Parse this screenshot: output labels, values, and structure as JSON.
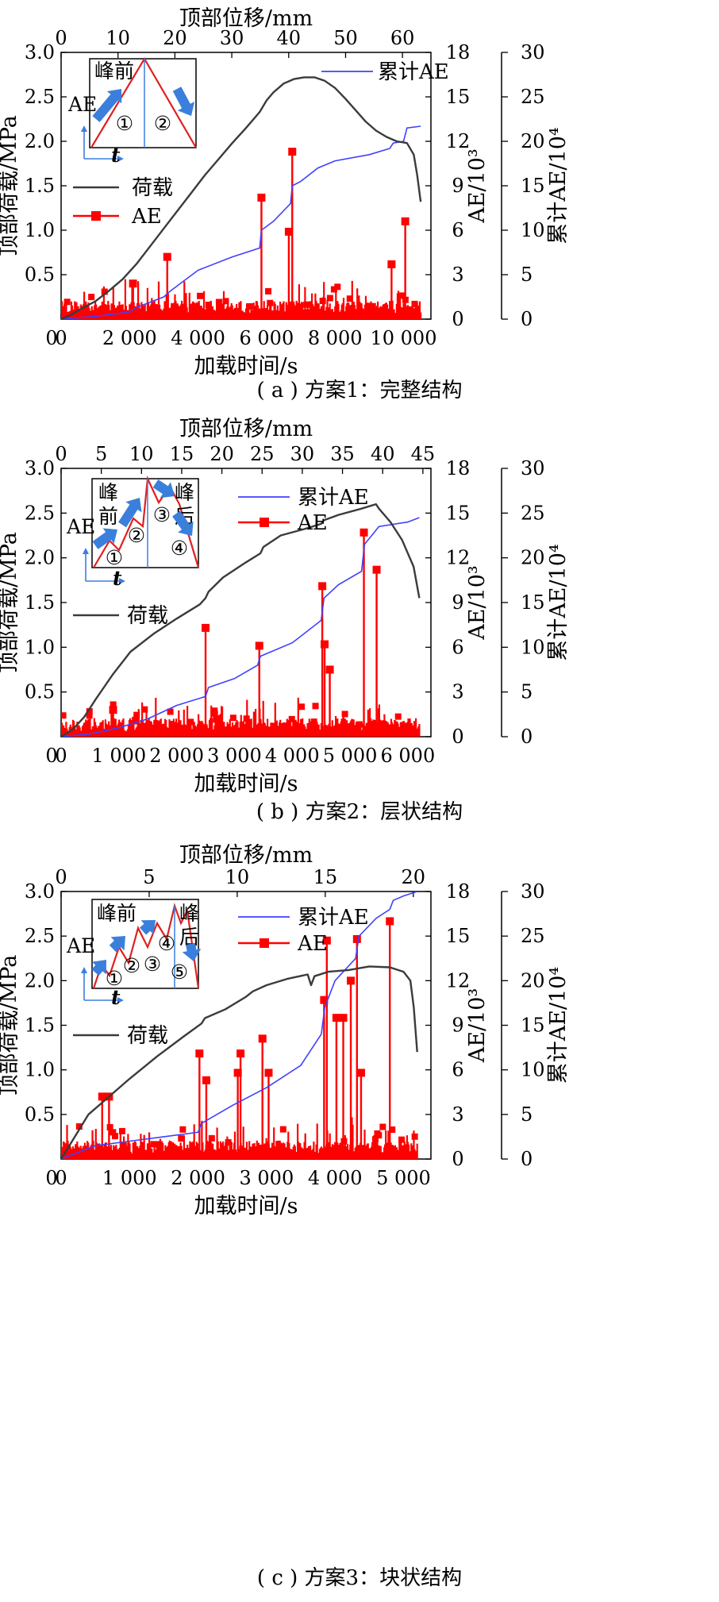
{
  "figure": {
    "charts": [
      {
        "caption": "( a ) 方案1：完整结构",
        "top_axis_title": "顶部位移/mm",
        "x_axis_title": "加载时间/s",
        "y_left_title": "顶部荷载/MPa",
        "y_right1_title": "AE/10³",
        "y_right2_title": "累计AE/10⁴",
        "legend": {
          "load": "荷载",
          "ae": "AE",
          "cum": "累计AE"
        },
        "inset": {
          "ylabel": "AE",
          "xlabel": "t",
          "stage_text": [
            "峰前"
          ],
          "stages": [
            "①",
            "②"
          ]
        }
      },
      {
        "caption": "( b ) 方案2：层状结构",
        "top_axis_title": "顶部位移/mm",
        "x_axis_title": "加载时间/s",
        "y_left_title": "顶部荷载/MPa",
        "y_right1_title": "AE/10³",
        "y_right2_title": "累计AE/10⁴",
        "legend": {
          "load": "荷载",
          "ae": "AE",
          "cum": "累计AE"
        },
        "inset": {
          "ylabel": "AE",
          "xlabel": "t",
          "stage_text": [
            "峰",
            "前",
            "峰",
            "后"
          ],
          "stages": [
            "①",
            "②",
            "③",
            "④"
          ]
        }
      },
      {
        "caption": "( c ) 方案3：块状结构",
        "top_axis_title": "顶部位移/mm",
        "x_axis_title": "加载时间/s",
        "y_left_title": "顶部荷载/MPa",
        "y_right1_title": "AE/10³",
        "y_right2_title": "累计AE/10⁴",
        "legend": {
          "load": "荷载",
          "ae": "AE",
          "cum": "累计AE"
        },
        "inset": {
          "ylabel": "AE",
          "xlabel": "t",
          "stage_text": [
            "峰前",
            "峰",
            "后"
          ],
          "stages": [
            "①",
            "②",
            "③",
            "④",
            "⑤"
          ]
        }
      }
    ]
  },
  "chart_data": [
    {
      "type": "line",
      "x_axis": {
        "range": [
          0,
          10800
        ],
        "ticks": [
          0,
          2000,
          4000,
          6000,
          8000,
          10000
        ],
        "tick_labels": [
          "0",
          "2 000",
          "4 000",
          "6 000",
          "8 000",
          "10 000"
        ]
      },
      "top_axis": {
        "range": [
          0,
          65
        ],
        "ticks": [
          0,
          10,
          20,
          30,
          40,
          50,
          60
        ],
        "tick_labels": [
          "0",
          "10",
          "20",
          "30",
          "40",
          "50",
          "60"
        ]
      },
      "y_left": {
        "range": [
          0,
          3.0
        ],
        "ticks": [
          0.5,
          1.0,
          1.5,
          2.0,
          2.5,
          3.0
        ],
        "tick_labels": [
          "0.5",
          "1.0",
          "1.5",
          "2.0",
          "2.5",
          "3.0"
        ]
      },
      "y_right1": {
        "range": [
          0,
          18
        ],
        "ticks": [
          0,
          3,
          6,
          9,
          12,
          15,
          18
        ],
        "tick_labels": [
          "0",
          "3",
          "6",
          "9",
          "12",
          "15",
          "18"
        ]
      },
      "y_right2": {
        "range": [
          0,
          30
        ],
        "ticks": [
          0,
          5,
          10,
          15,
          20,
          25,
          30
        ],
        "tick_labels": [
          "0",
          "5",
          "10",
          "15",
          "20",
          "25",
          "30"
        ]
      },
      "series": [
        {
          "name": "荷载",
          "axis": "left",
          "color": "#3b3b3b",
          "x": [
            0,
            300,
            600,
            1000,
            1400,
            1800,
            2200,
            2600,
            3000,
            3400,
            3800,
            4200,
            4600,
            5000,
            5400,
            5800,
            6000,
            6200,
            6500,
            6800,
            7100,
            7400,
            7700,
            8000,
            8300,
            8600,
            8900,
            9200,
            9500,
            9800,
            10100,
            10300,
            10400,
            10500
          ],
          "y": [
            0.0,
            0.05,
            0.12,
            0.2,
            0.32,
            0.45,
            0.62,
            0.82,
            1.02,
            1.22,
            1.42,
            1.62,
            1.8,
            1.98,
            2.15,
            2.33,
            2.46,
            2.55,
            2.65,
            2.7,
            2.72,
            2.72,
            2.68,
            2.6,
            2.48,
            2.35,
            2.22,
            2.12,
            2.05,
            2.0,
            1.98,
            1.85,
            1.62,
            1.32
          ]
        },
        {
          "name": "累计AE",
          "axis": "right2",
          "color": "#4040ff",
          "x": [
            0,
            1000,
            2000,
            2200,
            3000,
            3200,
            4000,
            5000,
            5800,
            5850,
            6200,
            6700,
            6750,
            7000,
            7500,
            8000,
            9000,
            9600,
            9700,
            10000,
            10100,
            10500
          ],
          "y": [
            0,
            0.3,
            0.8,
            1.3,
            2.5,
            3.2,
            5.5,
            7.0,
            8.0,
            10.0,
            11.0,
            13.0,
            15.0,
            15.5,
            17.0,
            17.8,
            18.5,
            19.2,
            19.8,
            20.0,
            21.5,
            21.7
          ]
        },
        {
          "name": "AE",
          "axis": "right1",
          "color": "#ff0000",
          "peaks_x": [
            2100,
            3100,
            5850,
            6650,
            6750,
            9650,
            10050
          ],
          "peaks_y": [
            2.4,
            4.2,
            8.2,
            5.9,
            11.3,
            3.7,
            6.6
          ]
        }
      ]
    },
    {
      "type": "line",
      "x_axis": {
        "range": [
          0,
          6400
        ],
        "ticks": [
          0,
          1000,
          2000,
          3000,
          4000,
          5000,
          6000
        ],
        "tick_labels": [
          "0",
          "1 000",
          "2 000",
          "3 000",
          "4 000",
          "5 000",
          "6 000"
        ]
      },
      "top_axis": {
        "range": [
          0,
          46
        ],
        "ticks": [
          0,
          5,
          10,
          15,
          20,
          25,
          30,
          35,
          40,
          45
        ],
        "tick_labels": [
          "0",
          "5",
          "10",
          "15",
          "20",
          "25",
          "30",
          "35",
          "40",
          "45"
        ]
      },
      "y_left": {
        "range": [
          0,
          3.0
        ],
        "ticks": [
          0.5,
          1.0,
          1.5,
          2.0,
          2.5,
          3.0
        ],
        "tick_labels": [
          "0.5",
          "1.0",
          "1.5",
          "2.0",
          "2.5",
          "3.0"
        ]
      },
      "y_right1": {
        "range": [
          0,
          18
        ],
        "ticks": [
          0,
          3,
          6,
          9,
          12,
          15,
          18
        ],
        "tick_labels": [
          "0",
          "3",
          "6",
          "9",
          "12",
          "15",
          "18"
        ]
      },
      "y_right2": {
        "range": [
          0,
          30
        ],
        "ticks": [
          0,
          5,
          10,
          15,
          20,
          25,
          30
        ],
        "tick_labels": [
          "0",
          "5",
          "10",
          "15",
          "20",
          "25",
          "30"
        ]
      },
      "series": [
        {
          "name": "荷载",
          "axis": "left",
          "color": "#3b3b3b",
          "x": [
            0,
            200,
            400,
            600,
            900,
            1200,
            1600,
            2000,
            2400,
            2500,
            2550,
            2800,
            3200,
            3450,
            3500,
            3800,
            4200,
            4500,
            4550,
            4800,
            5200,
            5450,
            5500,
            5700,
            5900,
            6100,
            6200
          ],
          "y": [
            0.0,
            0.08,
            0.22,
            0.42,
            0.7,
            0.95,
            1.15,
            1.32,
            1.48,
            1.55,
            1.62,
            1.78,
            1.95,
            2.05,
            2.12,
            2.25,
            2.32,
            2.38,
            2.42,
            2.48,
            2.55,
            2.6,
            2.55,
            2.4,
            2.2,
            1.9,
            1.55
          ]
        },
        {
          "name": "累计AE",
          "axis": "right2",
          "color": "#4040ff",
          "x": [
            0,
            500,
            1000,
            1500,
            2000,
            2500,
            2550,
            3000,
            3400,
            3450,
            4000,
            4500,
            4550,
            4800,
            5200,
            5250,
            5500,
            6000,
            6200
          ],
          "y": [
            0,
            0.3,
            1.0,
            2.0,
            3.5,
            4.5,
            5.5,
            6.5,
            8.0,
            9.0,
            10.5,
            13.0,
            15.5,
            17.0,
            18.5,
            21.5,
            23.5,
            24.0,
            24.5
          ]
        },
        {
          "name": "AE",
          "axis": "right1",
          "color": "#ff0000",
          "peaks_x": [
            900,
            2500,
            3430,
            4520,
            4560,
            4650,
            5240,
            5460
          ],
          "peaks_y": [
            1.8,
            7.3,
            6.1,
            10.1,
            6.2,
            4.5,
            13.7,
            11.2
          ]
        }
      ]
    },
    {
      "type": "line",
      "x_axis": {
        "range": [
          0,
          5400
        ],
        "ticks": [
          0,
          1000,
          2000,
          3000,
          4000,
          5000
        ],
        "tick_labels": [
          "0",
          "1 000",
          "2 000",
          "3 000",
          "4 000",
          "5 000"
        ]
      },
      "top_axis": {
        "range": [
          0,
          21
        ],
        "ticks": [
          0,
          5,
          10,
          15,
          20
        ],
        "tick_labels": [
          "0",
          "5",
          "10",
          "15",
          "20"
        ]
      },
      "y_left": {
        "range": [
          0,
          3.0
        ],
        "ticks": [
          0.5,
          1.0,
          1.5,
          2.0,
          2.5,
          3.0
        ],
        "tick_labels": [
          "0.5",
          "1.0",
          "1.5",
          "2.0",
          "2.5",
          "3.0"
        ]
      },
      "y_right1": {
        "range": [
          0,
          18
        ],
        "ticks": [
          0,
          3,
          6,
          9,
          12,
          15,
          18
        ],
        "tick_labels": [
          "0",
          "3",
          "6",
          "9",
          "12",
          "15",
          "18"
        ]
      },
      "y_right2": {
        "range": [
          0,
          30
        ],
        "ticks": [
          0,
          5,
          10,
          15,
          20,
          25,
          30
        ],
        "tick_labels": [
          "0",
          "5",
          "10",
          "15",
          "20",
          "25",
          "30"
        ]
      },
      "series": [
        {
          "name": "荷载",
          "axis": "left",
          "color": "#3b3b3b",
          "x": [
            0,
            200,
            400,
            700,
            1000,
            1400,
            1800,
            2050,
            2100,
            2400,
            2700,
            2800,
            3000,
            3300,
            3600,
            3650,
            3700,
            3900,
            4200,
            4500,
            4800,
            5000,
            5100,
            5150,
            5200
          ],
          "y": [
            0.0,
            0.25,
            0.5,
            0.7,
            0.9,
            1.15,
            1.38,
            1.52,
            1.58,
            1.68,
            1.82,
            1.88,
            1.95,
            2.02,
            2.07,
            1.95,
            2.05,
            2.1,
            2.12,
            2.16,
            2.15,
            2.1,
            2.0,
            1.7,
            1.2
          ]
        },
        {
          "name": "累计AE",
          "axis": "right2",
          "color": "#4040ff",
          "x": [
            0,
            500,
            1000,
            1500,
            2000,
            2050,
            2500,
            3000,
            3500,
            3800,
            3850,
            4000,
            4300,
            4350,
            4600,
            4800,
            4850,
            5000,
            5200
          ],
          "y": [
            0,
            1.5,
            2.0,
            2.5,
            3.0,
            4.0,
            6.0,
            8.0,
            10.5,
            14.0,
            17.0,
            20.0,
            22.5,
            25.0,
            27.0,
            28.0,
            29.0,
            29.5,
            30.0
          ]
        },
        {
          "name": "AE",
          "axis": "right1",
          "color": "#ff0000",
          "peaks_x": [
            600,
            700,
            2020,
            2120,
            2580,
            2620,
            2940,
            3030,
            3840,
            3880,
            4020,
            4120,
            4230,
            4320,
            4380,
            4800
          ],
          "peaks_y": [
            4.2,
            4.2,
            7.1,
            5.3,
            5.8,
            7.1,
            8.1,
            5.8,
            10.7,
            14.7,
            9.5,
            9.5,
            12.0,
            14.8,
            5.8,
            16.0
          ]
        }
      ]
    }
  ]
}
